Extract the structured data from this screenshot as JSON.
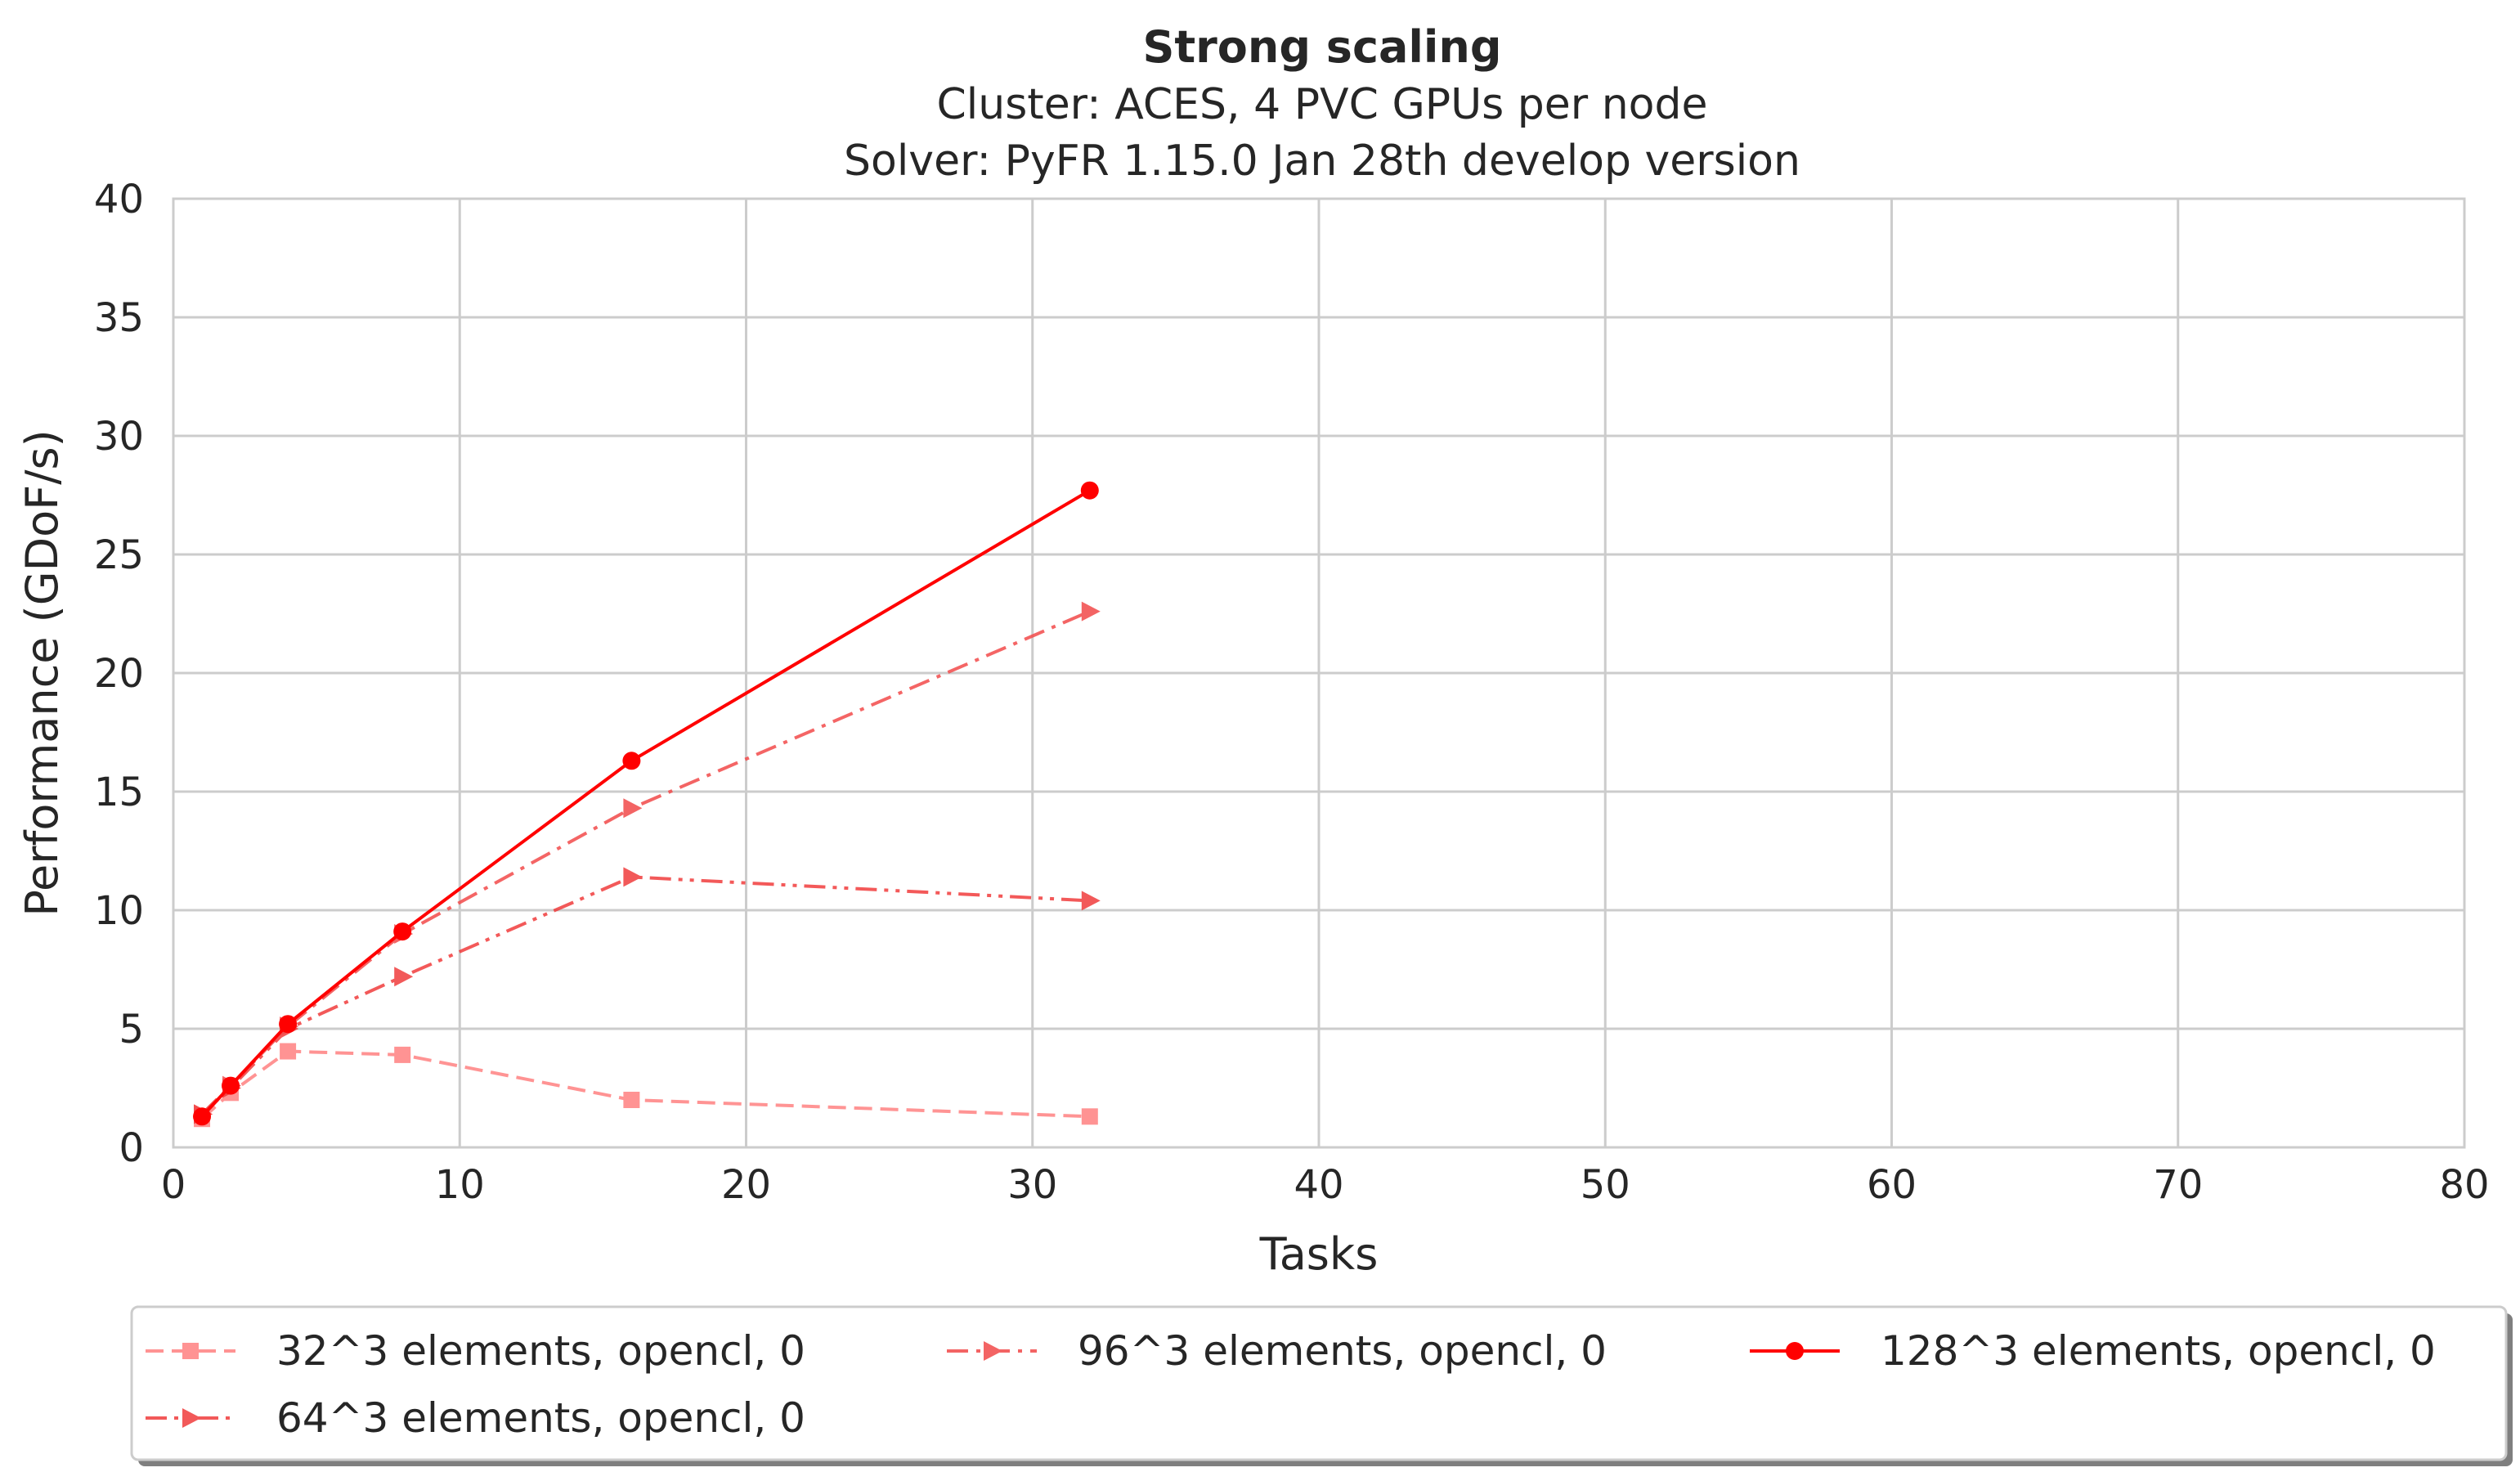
{
  "chart_data": {
    "type": "line",
    "title": "Strong scaling",
    "subtitle_lines": [
      "Cluster: ACES, 4 PVC GPUs per node",
      "Solver: PyFR 1.15.0 Jan 28th develop version"
    ],
    "xlabel": "Tasks",
    "ylabel": "Performance (GDoF/s)",
    "xlim": [
      0,
      80
    ],
    "ylim": [
      0,
      40
    ],
    "xticks": [
      0,
      10,
      20,
      30,
      40,
      50,
      60,
      70,
      80
    ],
    "yticks": [
      0,
      5,
      10,
      15,
      20,
      25,
      30,
      35,
      40
    ],
    "grid": true,
    "legend_placement": "bottom, below plot",
    "series": [
      {
        "name": "32^3 elements, opencl, 0",
        "x": [
          1,
          2,
          4,
          8,
          16,
          32
        ],
        "y": [
          1.2,
          2.3,
          4.05,
          3.9,
          2.0,
          1.3
        ],
        "color": "#ff4d4d",
        "dash": "dashed",
        "marker": "square",
        "alpha": 0.6
      },
      {
        "name": "64^3 elements, opencl, 0",
        "x": [
          1,
          2,
          4,
          8,
          16,
          32
        ],
        "y": [
          1.4,
          2.5,
          5.0,
          7.2,
          11.4,
          10.4
        ],
        "color": "#f03030",
        "dash": "dashdotdot",
        "marker": "triangle-right",
        "alpha": 0.8
      },
      {
        "name": "96^3 elements, opencl, 0",
        "x": [
          1,
          2,
          4,
          8,
          16,
          32
        ],
        "y": [
          1.4,
          2.6,
          5.1,
          9.0,
          14.3,
          22.6
        ],
        "color": "#f24a4a",
        "dash": "dashdot",
        "marker": "triangle-right",
        "alpha": 0.85
      },
      {
        "name": "128^3 elements, opencl, 0",
        "x": [
          1,
          2,
          4,
          8,
          16,
          32
        ],
        "y": [
          1.3,
          2.6,
          5.2,
          9.1,
          16.3,
          27.7
        ],
        "color": "#ff0000",
        "dash": "solid",
        "marker": "circle",
        "alpha": 1.0
      }
    ]
  },
  "legend": {
    "order": [
      0,
      2,
      3,
      1
    ]
  }
}
